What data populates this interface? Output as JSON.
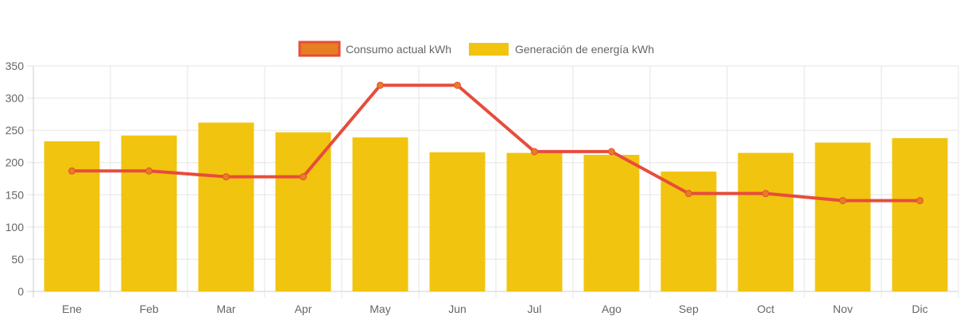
{
  "chart_data": {
    "type": "bar",
    "title": "",
    "xlabel": "",
    "ylabel": "",
    "ylim": [
      0,
      350
    ],
    "yticks": [
      0,
      50,
      100,
      150,
      200,
      250,
      300,
      350
    ],
    "grid": true,
    "legend_position": "top-center",
    "categories": [
      "Ene",
      "Feb",
      "Mar",
      "Apr",
      "May",
      "Jun",
      "Jul",
      "Ago",
      "Sep",
      "Oct",
      "Nov",
      "Dic"
    ],
    "series": [
      {
        "name": "Consumo actual kWh",
        "type": "line",
        "color": "#e74c3c",
        "point_color": "#e67e22",
        "values": [
          187,
          187,
          178,
          178,
          320,
          320,
          217,
          217,
          152,
          152,
          141,
          141
        ]
      },
      {
        "name": "Generación de energía kWh",
        "type": "bar",
        "color": "#f1c40f",
        "values": [
          233,
          242,
          262,
          247,
          239,
          216,
          215,
          212,
          186,
          215,
          231,
          238
        ]
      }
    ]
  }
}
